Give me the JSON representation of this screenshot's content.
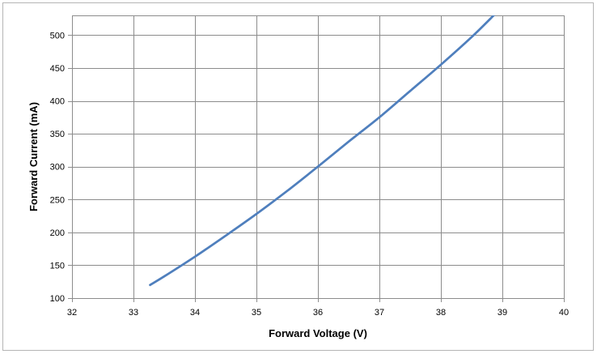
{
  "chart_data": {
    "type": "line",
    "title": "",
    "xlabel": "Forward Voltage (V)",
    "ylabel": "Forward Current (mA)",
    "xlim": [
      32,
      40
    ],
    "ylim": [
      100,
      530
    ],
    "x_ticks": [
      32,
      33,
      34,
      35,
      36,
      37,
      38,
      39,
      40
    ],
    "y_ticks": [
      100,
      150,
      200,
      250,
      300,
      350,
      400,
      450,
      500
    ],
    "grid": true,
    "legend": "none",
    "series": [
      {
        "color": "#4f7fbd",
        "x": [
          33.27,
          33.5,
          34.0,
          34.5,
          35.0,
          35.5,
          36.0,
          36.5,
          37.0,
          37.5,
          38.0,
          38.5,
          38.87
        ],
        "y": [
          120,
          133,
          163,
          195,
          228,
          263,
          300,
          338,
          375,
          415,
          455,
          497,
          531
        ]
      }
    ]
  }
}
